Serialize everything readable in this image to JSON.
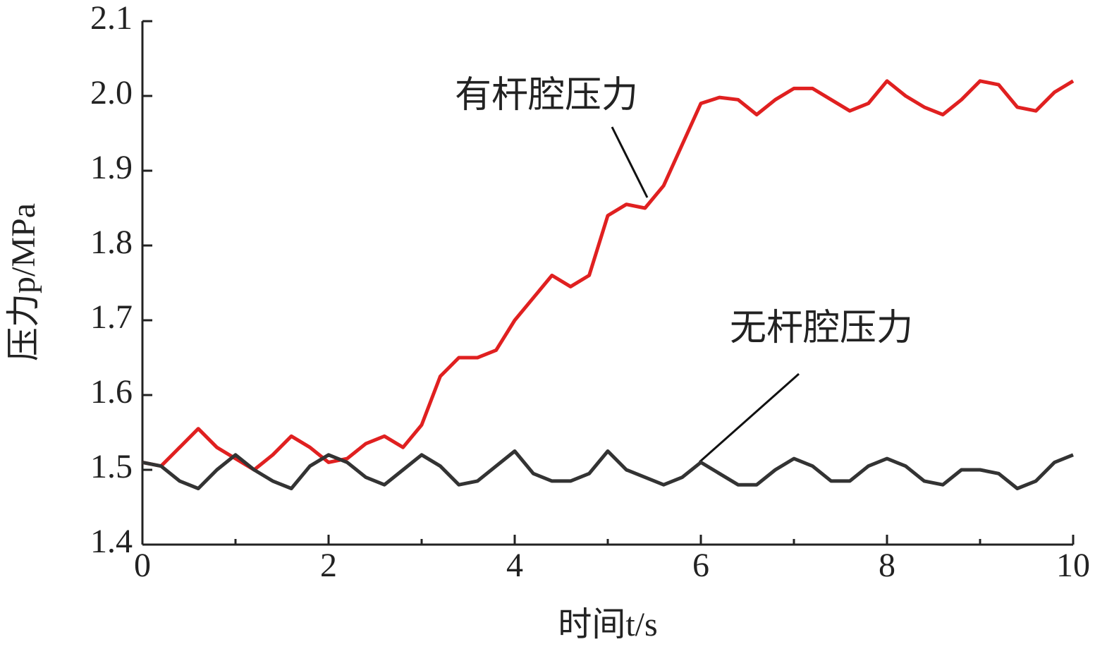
{
  "chart_data": {
    "type": "line",
    "xlabel": "时间t/s",
    "ylabel": "压力p/MPa",
    "x": [
      0,
      0.2,
      0.4,
      0.6,
      0.8,
      1,
      1.2,
      1.4,
      1.6,
      1.8,
      2,
      2.2,
      2.4,
      2.6,
      2.8,
      3,
      3.2,
      3.4,
      3.6,
      3.8,
      4,
      4.2,
      4.4,
      4.6,
      4.8,
      5,
      5.2,
      5.4,
      5.6,
      5.8,
      6,
      6.2,
      6.4,
      6.6,
      6.8,
      7,
      7.2,
      7.4,
      7.6,
      7.8,
      8,
      8.2,
      8.4,
      8.6,
      8.8,
      9,
      9.2,
      9.4,
      9.6,
      9.8,
      10
    ],
    "series": [
      {
        "name": "有杆腔压力",
        "color": "#e02020",
        "values": [
          1.51,
          1.505,
          1.53,
          1.555,
          1.53,
          1.515,
          1.5,
          1.52,
          1.545,
          1.53,
          1.51,
          1.515,
          1.535,
          1.545,
          1.53,
          1.56,
          1.625,
          1.65,
          1.65,
          1.66,
          1.7,
          1.73,
          1.76,
          1.745,
          1.76,
          1.84,
          1.855,
          1.85,
          1.88,
          1.935,
          1.99,
          1.998,
          1.995,
          1.975,
          1.995,
          2.01,
          2.01,
          1.995,
          1.98,
          1.99,
          2.02,
          2.0,
          1.985,
          1.975,
          1.995,
          2.02,
          2.015,
          1.985,
          1.98,
          2.005,
          2.02
        ]
      },
      {
        "name": "无杆腔压力",
        "color": "#333333",
        "values": [
          1.51,
          1.505,
          1.485,
          1.475,
          1.5,
          1.52,
          1.5,
          1.485,
          1.475,
          1.505,
          1.52,
          1.51,
          1.49,
          1.48,
          1.5,
          1.52,
          1.505,
          1.48,
          1.485,
          1.505,
          1.525,
          1.495,
          1.485,
          1.485,
          1.495,
          1.525,
          1.5,
          1.49,
          1.48,
          1.49,
          1.51,
          1.495,
          1.48,
          1.48,
          1.5,
          1.515,
          1.505,
          1.485,
          1.485,
          1.505,
          1.515,
          1.505,
          1.485,
          1.48,
          1.5,
          1.5,
          1.495,
          1.475,
          1.485,
          1.51,
          1.52
        ]
      }
    ],
    "xlim": [
      0,
      10
    ],
    "xticks": [
      0,
      2,
      4,
      6,
      8,
      10
    ],
    "xminor_ticks": [
      1,
      3,
      5,
      7,
      9
    ],
    "ylim": [
      1.4,
      2.1
    ],
    "yticks": [
      1.4,
      1.5,
      1.6,
      1.7,
      1.8,
      1.9,
      {
        "value": 2,
        "label": "2.0"
      },
      2.1
    ],
    "grid": false
  }
}
